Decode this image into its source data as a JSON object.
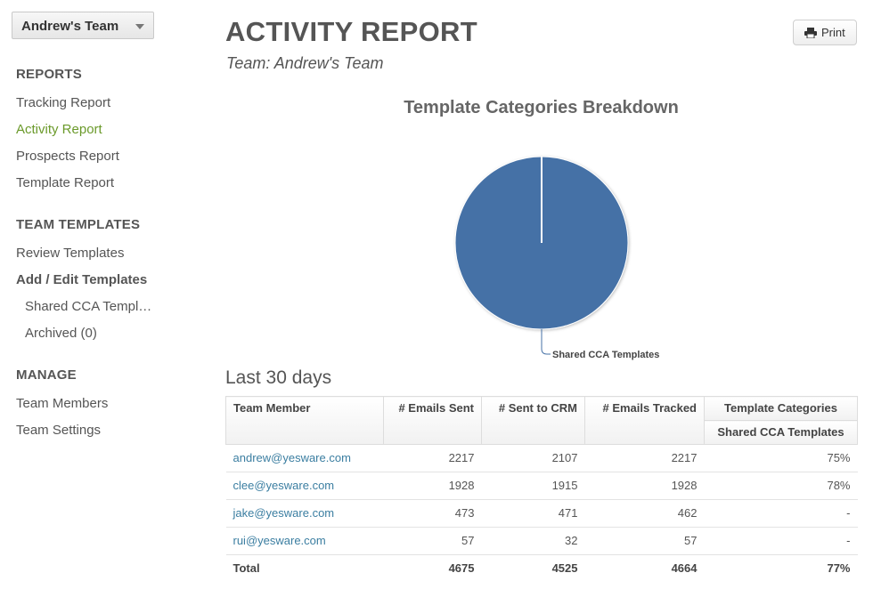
{
  "sidebar": {
    "team_select": "Andrew's Team",
    "sections": [
      {
        "heading": "REPORTS",
        "items": [
          "Tracking Report",
          "Activity Report",
          "Prospects Report",
          "Template Report"
        ]
      },
      {
        "heading": "TEAM TEMPLATES",
        "items": [
          "Review Templates",
          "Add / Edit Templates",
          "Shared CCA Templ…",
          "Archived (0)"
        ]
      },
      {
        "heading": "MANAGE",
        "items": [
          "Team Members",
          "Team Settings"
        ]
      }
    ]
  },
  "header": {
    "title": "ACTIVITY REPORT",
    "subtitle": "Team: Andrew's Team",
    "print_label": "Print"
  },
  "chart_data": {
    "type": "pie",
    "title": "Template Categories Breakdown",
    "slices": [
      {
        "name": "Shared CCA Templates",
        "value": 100
      }
    ],
    "colors": [
      "#4571a6"
    ]
  },
  "report": {
    "period": "Last 30 days",
    "columns": [
      "Team Member",
      "# Emails Sent",
      "# Sent to CRM",
      "# Emails Tracked",
      "Template Categories"
    ],
    "subcolumn": "Shared CCA Templates",
    "rows": [
      {
        "member": "andrew@yesware.com",
        "sent": "2217",
        "crm": "2107",
        "tracked": "2217",
        "shared": "75%"
      },
      {
        "member": "clee@yesware.com",
        "sent": "1928",
        "crm": "1915",
        "tracked": "1928",
        "shared": "78%"
      },
      {
        "member": "jake@yesware.com",
        "sent": "473",
        "crm": "471",
        "tracked": "462",
        "shared": "-"
      },
      {
        "member": "rui@yesware.com",
        "sent": "57",
        "crm": "32",
        "tracked": "57",
        "shared": "-"
      }
    ],
    "total": {
      "member": "Total",
      "sent": "4675",
      "crm": "4525",
      "tracked": "4664",
      "shared": "77%"
    }
  },
  "colors": {
    "accent": "#6b9a2b",
    "link": "#3b7ea1",
    "pie": "#4571a6"
  }
}
